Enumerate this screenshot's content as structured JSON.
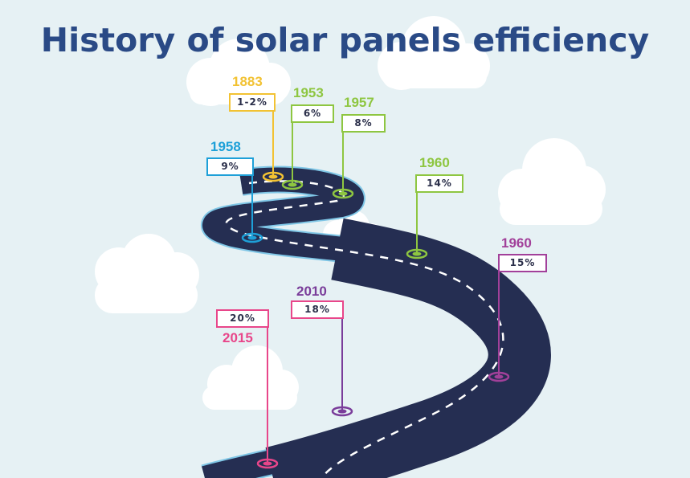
{
  "title": "History of solar panels efficiency",
  "milestones": [
    {
      "year": "1883",
      "efficiency": "1-2%",
      "color": "#f2c233"
    },
    {
      "year": "1953",
      "efficiency": "6%",
      "color": "#8ec641"
    },
    {
      "year": "1957",
      "efficiency": "8%",
      "color": "#8ec641"
    },
    {
      "year": "1958",
      "efficiency": "9%",
      "color": "#1ea0d8"
    },
    {
      "year": "1960",
      "efficiency": "14%",
      "color": "#8ec641"
    },
    {
      "year": "1960",
      "efficiency": "15%",
      "color": "#a2409a"
    },
    {
      "year": "2010",
      "efficiency": "18%",
      "color": "#7a3d9a"
    },
    {
      "year": "2015",
      "efficiency": "20%",
      "color": "#e8468a"
    }
  ],
  "colors": {
    "background": "#e6f1f4",
    "title": "#2a4a86",
    "road": "#252e52",
    "road_edge": "#7fc6e6"
  }
}
